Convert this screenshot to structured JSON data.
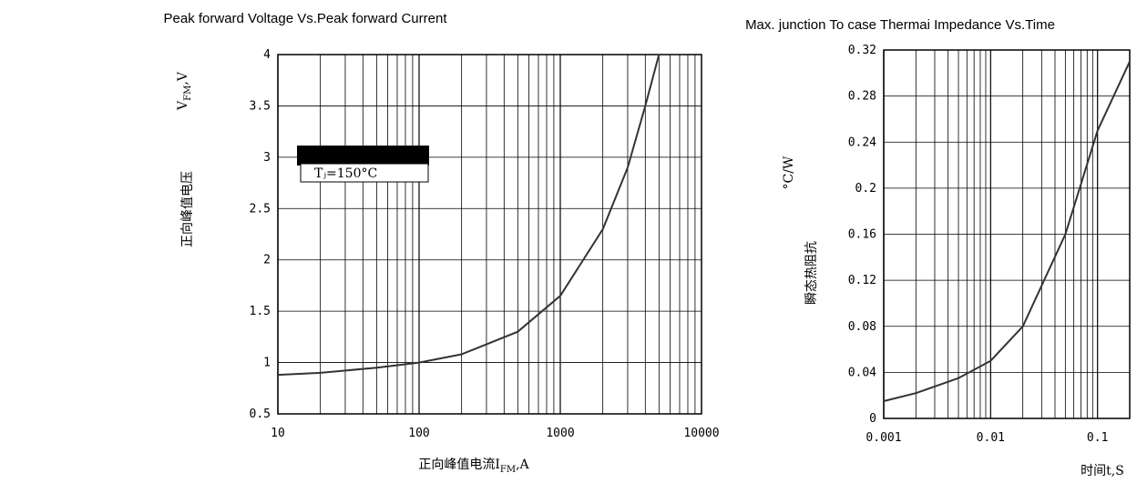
{
  "chart_data": [
    {
      "type": "line",
      "title": "Peak forward Voltage Vs.Peak forward Current",
      "xlabel": "正向峰值电流I",
      "xlabel_sub": "FM",
      "xlabel_unit": ",A",
      "ylabel": "V",
      "ylabel_sub": "FM",
      "ylabel_unit": ",V",
      "ylabel_cn": "正向峰值电压",
      "xscale": "log",
      "xlim": [
        10,
        10000
      ],
      "ylim": [
        0.5,
        4
      ],
      "xticks": [
        "10",
        "100",
        "1000",
        "10000"
      ],
      "yticks": [
        "0.5",
        "1",
        "1.5",
        "2",
        "2.5",
        "3",
        "3.5",
        "4"
      ],
      "legend": "Tⱼ=150°C",
      "grid": true,
      "series": [
        {
          "x": [
            10,
            20,
            50,
            100,
            200,
            500,
            1000,
            2000,
            3000,
            4000,
            5000
          ],
          "y": [
            0.88,
            0.9,
            0.95,
            1.0,
            1.08,
            1.3,
            1.65,
            2.3,
            2.9,
            3.5,
            4.0
          ]
        }
      ]
    },
    {
      "type": "line",
      "title": "Max. junction To case Thermai Impedance Vs.Time",
      "ylabel": "°C/W",
      "ylabel_cn": "瞬态热阻抗",
      "xlabel": "时间t,S",
      "xscale": "log",
      "xlim": [
        0.001,
        0.2
      ],
      "ylim": [
        0,
        0.32
      ],
      "xticks": [
        "0.001",
        "0.01",
        "0.1"
      ],
      "yticks": [
        "0",
        "0.04",
        "0.08",
        "0.12",
        "0.16",
        "0.2",
        "0.24",
        "0.28",
        "0.32"
      ],
      "grid": true,
      "series": [
        {
          "x": [
            0.001,
            0.002,
            0.005,
            0.01,
            0.02,
            0.05,
            0.1,
            0.2
          ],
          "y": [
            0.015,
            0.022,
            0.035,
            0.05,
            0.08,
            0.16,
            0.25,
            0.31
          ]
        }
      ]
    }
  ]
}
